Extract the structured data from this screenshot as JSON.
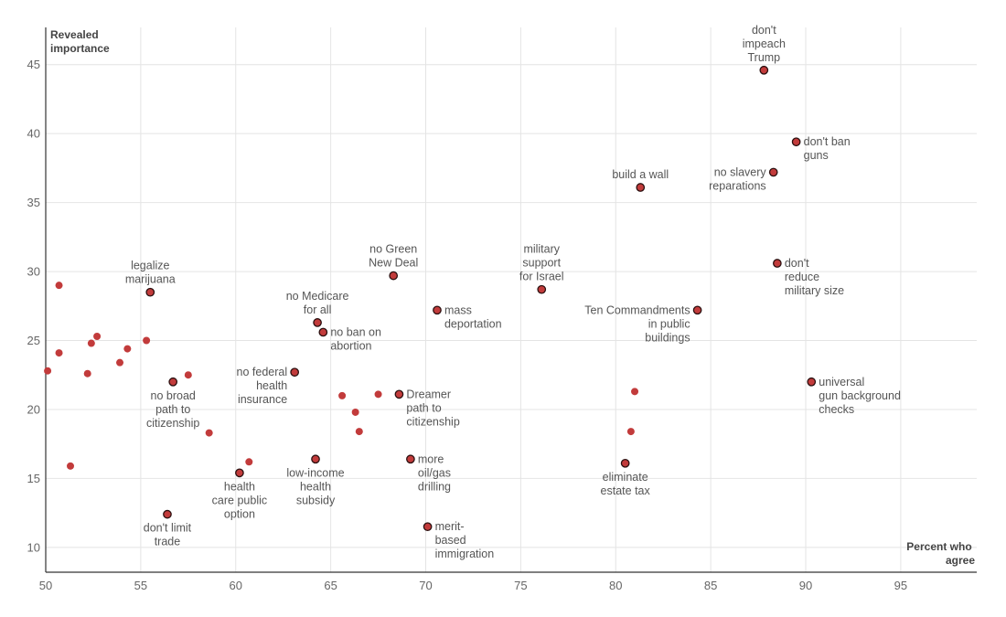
{
  "chart_data": {
    "type": "scatter",
    "xlabel": [
      "Percent who",
      "agree"
    ],
    "ylabel": [
      "Revealed",
      "importance"
    ],
    "xlim": [
      50,
      99
    ],
    "ylim": [
      8.2,
      47.7
    ],
    "xticks": [
      "50",
      "55",
      "60",
      "65",
      "70",
      "75",
      "80",
      "85",
      "90",
      "95"
    ],
    "yticks": [
      "10",
      "15",
      "20",
      "25",
      "30",
      "35",
      "40",
      "45"
    ],
    "grid": true,
    "colors": {
      "point": "#c23b3b",
      "outline": "#2a1010",
      "label": "#555555"
    },
    "points": [
      {
        "x": 87.8,
        "y": 44.6,
        "labeled": true,
        "label": [
          "don't",
          "impeach",
          "Trump"
        ],
        "anchor": "above"
      },
      {
        "x": 89.5,
        "y": 39.4,
        "labeled": true,
        "label": [
          "don't ban",
          "guns"
        ],
        "anchor": "right"
      },
      {
        "x": 88.3,
        "y": 37.2,
        "labeled": true,
        "label": [
          "no slavery",
          "reparations"
        ],
        "anchor": "left"
      },
      {
        "x": 81.3,
        "y": 36.1,
        "labeled": true,
        "label": [
          "build a wall"
        ],
        "anchor": "above"
      },
      {
        "x": 88.5,
        "y": 30.6,
        "labeled": true,
        "label": [
          "don't",
          "reduce",
          "military size"
        ],
        "anchor": "right"
      },
      {
        "x": 84.3,
        "y": 27.2,
        "labeled": true,
        "label": [
          "Ten Commandments",
          "in public",
          "buildings"
        ],
        "anchor": "left"
      },
      {
        "x": 90.3,
        "y": 22.0,
        "labeled": true,
        "label": [
          "universal",
          "gun background",
          "checks"
        ],
        "anchor": "right"
      },
      {
        "x": 80.5,
        "y": 16.1,
        "labeled": true,
        "label": [
          "eliminate",
          "estate tax"
        ],
        "anchor": "below"
      },
      {
        "x": 76.1,
        "y": 28.7,
        "labeled": true,
        "label": [
          "military",
          "support",
          "for Israel"
        ],
        "anchor": "above"
      },
      {
        "x": 68.3,
        "y": 29.7,
        "labeled": true,
        "label": [
          "no Green",
          "New Deal"
        ],
        "anchor": "above"
      },
      {
        "x": 70.6,
        "y": 27.2,
        "labeled": true,
        "label": [
          "mass",
          "deportation"
        ],
        "anchor": "right"
      },
      {
        "x": 64.3,
        "y": 26.3,
        "labeled": true,
        "label": [
          "no Medicare",
          "for all"
        ],
        "anchor": "above"
      },
      {
        "x": 64.6,
        "y": 25.6,
        "labeled": true,
        "label": [
          "no ban on",
          "abortion"
        ],
        "anchor": "right"
      },
      {
        "x": 63.1,
        "y": 22.7,
        "labeled": true,
        "label": [
          "no federal",
          "health",
          "insurance"
        ],
        "anchor": "left"
      },
      {
        "x": 68.6,
        "y": 21.1,
        "labeled": true,
        "label": [
          "Dreamer",
          "path to",
          "citizenship"
        ],
        "anchor": "right"
      },
      {
        "x": 69.2,
        "y": 16.4,
        "labeled": true,
        "label": [
          "more",
          "oil/gas",
          "drilling"
        ],
        "anchor": "right"
      },
      {
        "x": 64.2,
        "y": 16.4,
        "labeled": true,
        "label": [
          "low-income",
          "health",
          "subsidy"
        ],
        "anchor": "below"
      },
      {
        "x": 70.1,
        "y": 11.5,
        "labeled": true,
        "label": [
          "merit-",
          "based",
          "immigration"
        ],
        "anchor": "right"
      },
      {
        "x": 60.2,
        "y": 15.4,
        "labeled": true,
        "label": [
          "health",
          "care public",
          "option"
        ],
        "anchor": "below"
      },
      {
        "x": 56.4,
        "y": 12.4,
        "labeled": true,
        "label": [
          "don't limit",
          "trade"
        ],
        "anchor": "below"
      },
      {
        "x": 56.7,
        "y": 22.0,
        "labeled": true,
        "label": [
          "no broad",
          "path to",
          "citizenship"
        ],
        "anchor": "below"
      },
      {
        "x": 55.5,
        "y": 28.5,
        "labeled": true,
        "label": [
          "legalize",
          "marijuana"
        ],
        "anchor": "above"
      },
      {
        "x": 50.7,
        "y": 29.0,
        "labeled": false
      },
      {
        "x": 50.7,
        "y": 24.1,
        "labeled": false
      },
      {
        "x": 50.1,
        "y": 22.8,
        "labeled": false
      },
      {
        "x": 51.3,
        "y": 15.9,
        "labeled": false
      },
      {
        "x": 52.2,
        "y": 22.6,
        "labeled": false
      },
      {
        "x": 52.4,
        "y": 24.8,
        "labeled": false
      },
      {
        "x": 52.7,
        "y": 25.3,
        "labeled": false
      },
      {
        "x": 53.9,
        "y": 23.4,
        "labeled": false
      },
      {
        "x": 54.3,
        "y": 24.4,
        "labeled": false
      },
      {
        "x": 55.3,
        "y": 25.0,
        "labeled": false
      },
      {
        "x": 57.5,
        "y": 22.5,
        "labeled": false
      },
      {
        "x": 58.6,
        "y": 18.3,
        "labeled": false
      },
      {
        "x": 60.7,
        "y": 16.2,
        "labeled": false
      },
      {
        "x": 65.6,
        "y": 21.0,
        "labeled": false
      },
      {
        "x": 66.3,
        "y": 19.8,
        "labeled": false
      },
      {
        "x": 66.5,
        "y": 18.4,
        "labeled": false
      },
      {
        "x": 67.5,
        "y": 21.1,
        "labeled": false
      },
      {
        "x": 81.0,
        "y": 21.3,
        "labeled": false
      },
      {
        "x": 80.8,
        "y": 18.4,
        "labeled": false
      }
    ]
  }
}
